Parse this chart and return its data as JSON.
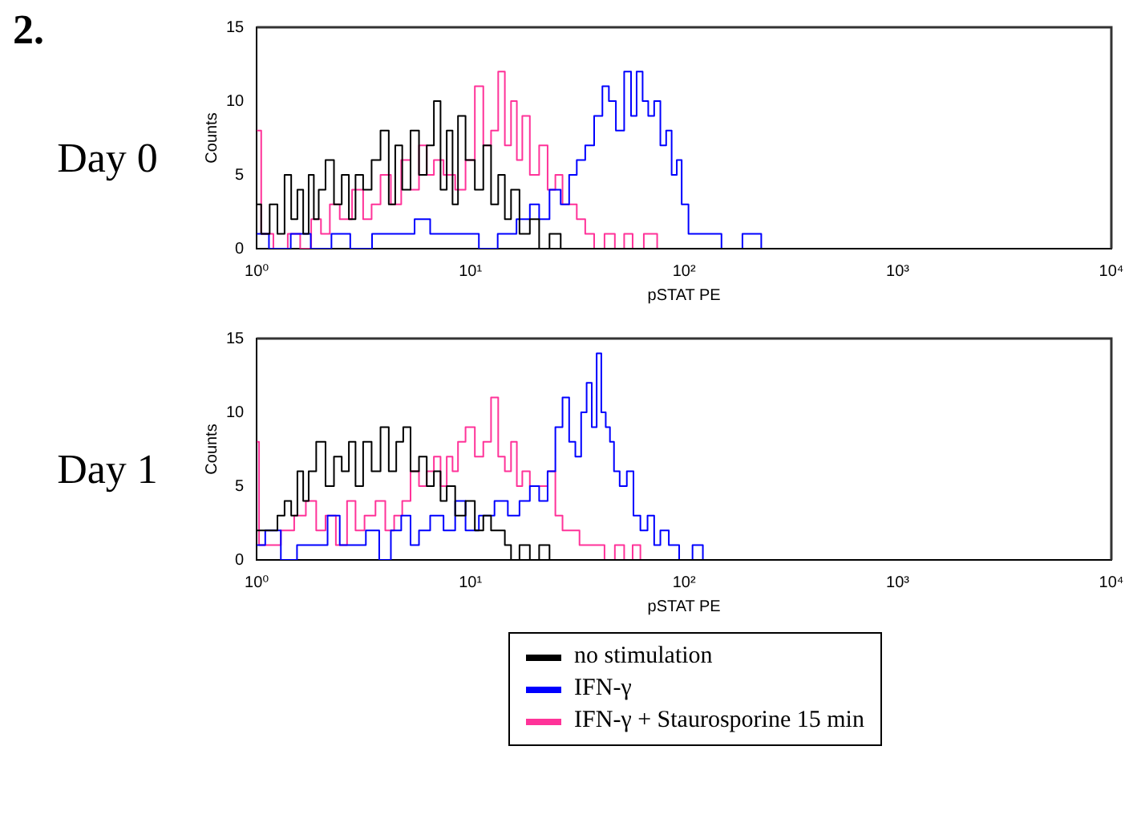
{
  "chart_data": [
    {
      "type": "step",
      "title": "Day 0",
      "annotations": [
        "2."
      ],
      "xlabel": "pSTAT PE",
      "ylabel": "Counts",
      "log": "x",
      "xlim": [
        1,
        10000
      ],
      "ylim": [
        0,
        15
      ],
      "xticks": [
        {
          "value": 1,
          "label": "10⁰"
        },
        {
          "value": 10,
          "label": "10¹"
        },
        {
          "value": 100,
          "label": "10²"
        },
        {
          "value": 1000,
          "label": "10³"
        },
        {
          "value": 10000,
          "label": "10⁴"
        }
      ],
      "yticks": [
        0,
        5,
        10,
        15
      ],
      "grid": false,
      "legend": false,
      "series": [
        {
          "color": "#000000",
          "x": [
            1,
            1.1,
            1.2,
            1.3,
            1.4,
            1.5,
            1.6,
            1.7,
            1.8,
            1.9,
            2,
            2.2,
            2.4,
            2.6,
            2.8,
            3,
            3.3,
            3.6,
            4,
            4.3,
            4.6,
            5,
            5.5,
            6,
            6.5,
            7,
            7.5,
            8,
            8.5,
            9,
            10,
            11,
            12,
            13,
            14,
            15,
            16,
            18,
            20,
            22,
            25,
            28,
            32,
            10000
          ],
          "values": [
            3,
            1,
            3,
            1,
            5,
            2,
            4,
            1,
            5,
            2,
            4,
            6,
            3,
            5,
            2,
            5,
            4,
            6,
            8,
            3,
            7,
            4,
            8,
            5,
            7,
            10,
            4,
            8,
            3,
            9,
            6,
            4,
            7,
            3,
            5,
            2,
            4,
            1,
            2,
            0,
            1,
            0,
            0,
            0
          ]
        },
        {
          "color": "#0000ff",
          "x": [
            1,
            1.3,
            1.6,
            2,
            2.5,
            3,
            4,
            5,
            6,
            7,
            8,
            10,
            12,
            15,
            18,
            20,
            22,
            25,
            28,
            30,
            33,
            36,
            40,
            43,
            46,
            50,
            55,
            58,
            62,
            66,
            70,
            75,
            80,
            85,
            90,
            95,
            100,
            110,
            125,
            140,
            160,
            220,
            240,
            10000
          ],
          "values": [
            1,
            0,
            1,
            0,
            1,
            0,
            1,
            1,
            2,
            1,
            1,
            1,
            0,
            1,
            2,
            3,
            2,
            4,
            3,
            5,
            6,
            7,
            9,
            11,
            10,
            8,
            12,
            9,
            12,
            10,
            9,
            10,
            7,
            8,
            5,
            6,
            3,
            1,
            1,
            1,
            0,
            1,
            0,
            0
          ]
        },
        {
          "color": "#ff3399",
          "x": [
            1,
            1.1,
            1.3,
            1.5,
            1.7,
            1.9,
            2.1,
            2.3,
            2.6,
            3,
            3.3,
            3.6,
            4,
            4.5,
            5,
            5.5,
            6,
            6.5,
            7,
            8,
            9,
            10,
            11,
            12,
            13,
            14,
            15,
            16,
            17,
            18,
            20,
            22,
            24,
            26,
            28,
            30,
            33,
            36,
            40,
            45,
            50,
            55,
            60,
            70,
            80,
            10000
          ],
          "values": [
            8,
            1,
            0,
            1,
            0,
            2,
            1,
            3,
            2,
            4,
            2,
            3,
            5,
            3,
            6,
            4,
            7,
            5,
            6,
            5,
            4,
            6,
            11,
            7,
            8,
            12,
            7,
            10,
            6,
            9,
            5,
            7,
            4,
            5,
            3,
            3,
            2,
            1,
            0,
            1,
            0,
            1,
            0,
            1,
            0,
            0
          ]
        }
      ]
    },
    {
      "type": "step",
      "title": "Day 1",
      "xlabel": "pSTAT PE",
      "ylabel": "Counts",
      "log": "x",
      "xlim": [
        1,
        10000
      ],
      "ylim": [
        0,
        15
      ],
      "xticks": [
        {
          "value": 1,
          "label": "10⁰"
        },
        {
          "value": 10,
          "label": "10¹"
        },
        {
          "value": 100,
          "label": "10²"
        },
        {
          "value": 1000,
          "label": "10³"
        },
        {
          "value": 10000,
          "label": "10⁴"
        }
      ],
      "yticks": [
        0,
        5,
        10,
        15
      ],
      "grid": false,
      "legend": "bottom",
      "series": [
        {
          "name": "no stimulation",
          "color": "#000000",
          "x": [
            1,
            1.1,
            1.2,
            1.3,
            1.4,
            1.5,
            1.6,
            1.7,
            1.8,
            2,
            2.2,
            2.4,
            2.6,
            2.8,
            3,
            3.3,
            3.6,
            4,
            4.3,
            4.7,
            5,
            5.5,
            6,
            6.5,
            7,
            7.5,
            8,
            9,
            10,
            11,
            12,
            13,
            14,
            15,
            16,
            18,
            20,
            22,
            25,
            10000
          ],
          "values": [
            2,
            2,
            2,
            3,
            4,
            3,
            6,
            4,
            6,
            8,
            5,
            7,
            6,
            8,
            5,
            8,
            6,
            9,
            6,
            8,
            9,
            6,
            7,
            5,
            6,
            4,
            5,
            3,
            4,
            2,
            3,
            2,
            2,
            1,
            0,
            1,
            0,
            1,
            0,
            0
          ]
        },
        {
          "name": "IFN-γ",
          "color": "#0000ff",
          "x": [
            1,
            1.2,
            1.4,
            1.7,
            2,
            2.3,
            2.6,
            3,
            3.5,
            4,
            4.5,
            5,
            5.5,
            6,
            7,
            8,
            9,
            10,
            12,
            14,
            16,
            18,
            20,
            22,
            24,
            26,
            28,
            30,
            32,
            34,
            36,
            38,
            40,
            42,
            44,
            46,
            48,
            52,
            56,
            60,
            65,
            70,
            75,
            80,
            90,
            100,
            120,
            125,
            10000
          ],
          "values": [
            1,
            2,
            0,
            1,
            1,
            3,
            1,
            1,
            2,
            0,
            2,
            3,
            1,
            2,
            3,
            2,
            4,
            2,
            3,
            4,
            3,
            4,
            5,
            4,
            6,
            9,
            11,
            8,
            7,
            10,
            12,
            9,
            14,
            10,
            9,
            8,
            6,
            5,
            6,
            3,
            2,
            3,
            1,
            2,
            1,
            0,
            1,
            0,
            0
          ]
        },
        {
          "name": "IFN-γ + Staurosporine 15 min",
          "color": "#ff3399",
          "x": [
            1,
            1.05,
            1.2,
            1.4,
            1.6,
            1.8,
            2,
            2.2,
            2.5,
            2.8,
            3,
            3.4,
            3.8,
            4.2,
            4.6,
            5,
            5.5,
            6,
            6.5,
            7,
            7.5,
            8,
            8.5,
            9,
            10,
            11,
            12,
            13,
            14,
            15,
            16,
            17,
            18,
            20,
            22,
            24,
            26,
            28,
            30,
            35,
            40,
            45,
            50,
            55,
            60,
            65,
            10000
          ],
          "values": [
            8,
            1,
            1,
            2,
            3,
            4,
            2,
            3,
            1,
            4,
            2,
            3,
            4,
            2,
            3,
            4,
            6,
            5,
            6,
            7,
            5,
            7,
            6,
            8,
            9,
            7,
            8,
            11,
            7,
            6,
            8,
            5,
            6,
            5,
            5,
            6,
            3,
            2,
            2,
            1,
            1,
            0,
            1,
            0,
            1,
            0,
            0
          ]
        }
      ]
    }
  ]
}
